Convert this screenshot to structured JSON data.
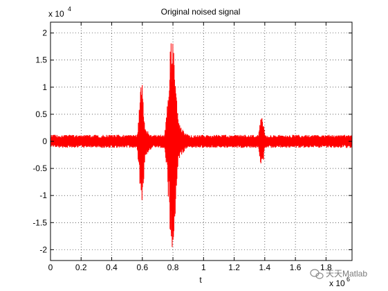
{
  "chart_data": {
    "type": "line",
    "title": "Original noised signal",
    "xlabel": "t",
    "ylabel": "",
    "xlim": [
      0,
      1.97
    ],
    "ylim": [
      -2.2,
      2.2
    ],
    "x_multiplier": "x 10",
    "x_multiplier_exponent": "6",
    "y_multiplier": "x 10",
    "y_multiplier_exponent": "4",
    "xticks": [
      0,
      0.2,
      0.4,
      0.6,
      0.8,
      1,
      1.2,
      1.4,
      1.6,
      1.8
    ],
    "xtick_labels": [
      "0",
      "0.2",
      "0.4",
      "0.6",
      "0.8",
      "1",
      "1.2",
      "1.4",
      "1.6",
      "1.8"
    ],
    "yticks": [
      2,
      1.5,
      1,
      0.5,
      0,
      -0.5,
      -1,
      -1.5,
      -2
    ],
    "ytick_labels": [
      "2",
      "1.5",
      "1",
      "0.5",
      "0",
      "-0.5",
      "-1",
      "-1.5",
      "-2"
    ],
    "grid": true,
    "grid_style": "dotted",
    "series": [
      {
        "color": "#ff0000",
        "baseline_noise": 0.12,
        "bursts": [
          {
            "x": 0.595,
            "peak_pos": 1.1,
            "peak_neg": -1.2
          },
          {
            "x": 0.795,
            "peak_pos": 2.0,
            "peak_neg": -2.0
          },
          {
            "x": 1.38,
            "peak_pos": 0.48,
            "peak_neg": -0.48
          }
        ]
      }
    ]
  },
  "watermark": {
    "text": "天天Matlab",
    "icon": "wechat-icon",
    "color": "#7a7a7a"
  }
}
